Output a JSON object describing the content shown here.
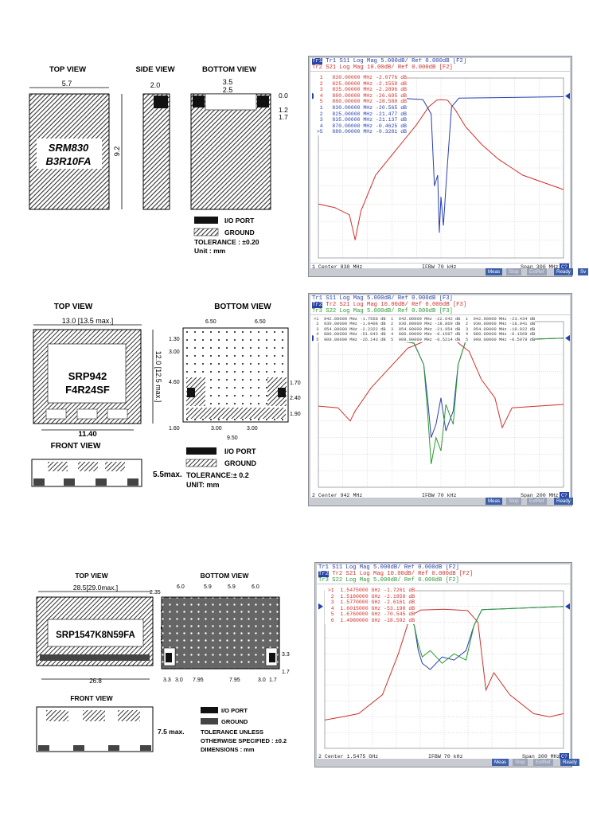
{
  "section1": {
    "drawing": {
      "top_view": "TOP VIEW",
      "side_view": "SIDE VIEW",
      "bottom_view": "BOTTOM VIEW",
      "dim_width": "5.7",
      "dim_height": "9.2",
      "dim_side": "2.0",
      "dim_b1": "3.5",
      "dim_b2": "2.5",
      "dim_r1": "0.0",
      "dim_r2": "1.2",
      "dim_r3": "1.7",
      "part_line1": "SRM830",
      "part_line2": "B3R10FA",
      "legend_io": "I/O PORT",
      "legend_ground": "GROUND",
      "tolerance": "TOLERANCE : ±0.20",
      "unit": "Unit : mm"
    },
    "analyzer": {
      "trace_lines": [
        "Tr1 S11 Log Mag 5.000dB/ Ref 0.000dB [F2]",
        "Tr2 S21 Log Mag 10.00dB/ Ref 0.000dB [F2]"
      ],
      "marker_lines": [
        "  1   830.00000 MHz -2.0776 dB",
        "  2   825.00000 MHz -2.1558 dB",
        "  3   835.00000 MHz -2.2896 dB",
        "  4   880.00000 MHz -26.695 dB",
        "  5   880.00000 MHz -28.588 dB",
        "  1   830.00000 MHz -20.565 dB",
        "  2   825.00000 MHz -21.477 dB",
        "  3   835.00000 MHz -21.137 dB",
        "  4   870.00000 MHz -0.4625 dB",
        " >5   880.00000 MHz -0.3281 dB"
      ],
      "status_left": "1  Center 830 MHz",
      "status_mid": "IFBW 70 kHz",
      "status_right": "Span 300 MHz",
      "status_badge": "C?",
      "softkeys": [
        "Meas",
        "Stop",
        "ExtRef",
        "Ready",
        "Sv"
      ]
    },
    "chart_data": {
      "type": "line",
      "xlabel": "Center 830 MHz",
      "x_center_mhz": 830,
      "x_span_mhz": 300,
      "series": [
        {
          "points_mhz_db": [
            [
              680,
              -60
            ],
            [
              700,
              -62
            ],
            [
              718,
              -66
            ],
            [
              725,
              -80
            ],
            [
              732,
              -64
            ],
            [
              750,
              -44
            ],
            [
              775,
              -30
            ],
            [
              800,
              -16
            ],
            [
              815,
              -6
            ],
            [
              825,
              -2.2
            ],
            [
              830,
              -2.1
            ],
            [
              838,
              -2.3
            ],
            [
              848,
              -8
            ],
            [
              860,
              -17
            ],
            [
              880,
              -27
            ],
            [
              900,
              -35
            ],
            [
              930,
              -44
            ],
            [
              980,
              -52
            ]
          ]
        },
        {
          "points_mhz_db": [
            [
              680,
              0
            ],
            [
              760,
              -0.3
            ],
            [
              808,
              -1
            ],
            [
              818,
              -5
            ],
            [
              822,
              -25
            ],
            [
              826,
              -22
            ],
            [
              828,
              -38
            ],
            [
              830,
              -28
            ],
            [
              833,
              -36
            ],
            [
              837,
              -22
            ],
            [
              843,
              -3
            ],
            [
              852,
              -0.6
            ],
            [
              980,
              -0.2
            ]
          ]
        }
      ]
    }
  },
  "section2": {
    "drawing": {
      "top_view": "TOP VIEW",
      "bottom_view": "BOTTOM VIEW",
      "front_view": "FRONT VIEW",
      "dim_width": "13.0 [13.5 max.]",
      "dim_height": "12.0 [12.5 max.]",
      "dim_base": "11.40",
      "part_line1": "SRP942",
      "part_line2": "F4R24SF",
      "dim_b_top1": "6.50",
      "dim_b_top2": "6.50",
      "dim_b_left1": "1.30",
      "dim_b_left2": "3.00",
      "dim_b_left3": "4.60",
      "dim_b_right1": "1.70",
      "dim_b_right2": "2.40",
      "dim_b_right3": "1.90",
      "dim_b_bot0": "1.60",
      "dim_b_bot1": "3.00",
      "dim_b_bot2": "3.00",
      "dim_b_bot3": "9.50",
      "dim_front": "5.5max.",
      "legend_io": "I/O  PORT",
      "legend_ground": "GROUND",
      "tolerance": "TOLERANCE:± 0.2",
      "unit": "UNIT: mm"
    },
    "analyzer": {
      "trace_lines": [
        "Tr1 S11 Log Mag 5.000dB/ Ref 0.000dB [F3]",
        "Tr2 S21 Log Mag 10.00dB/ Ref 0.000dB [F3]",
        "Tr3 S22 Log Mag 5.000dB/ Ref 0.000dB [F3]"
      ],
      "marker_lines": [
        ">1  942.00000 MHz -1.7568 dB  1  942.00000 MHz -22.642 dB  1  942.00000 MHz -23.434 dB",
        " 2  930.00000 MHz -1.9408 dB  2  930.00000 MHz -18.869 dB  2  930.00000 MHz -18.041 dB",
        " 3  954.00000 MHz -2.2322 dB  3  954.00000 MHz -21.954 dB  3  954.00000 MHz -19.922 dB",
        " 4  880.00000 MHz -51.043 dB  4  880.00000 MHz -0.1597 dB  4  880.00000 MHz -0.1569 dB",
        " 5  909.00000 MHz -26.143 dB  5  909.00000 MHz -0.5214 dB  5  909.00000 MHz -0.5079 dB"
      ],
      "status_left": "2  Center 942 MHz",
      "status_mid": "IFBW 70 kHz",
      "status_right": "Span 200 MHz",
      "status_badge": "C?",
      "softkeys": [
        "Meas",
        "Stop",
        "ExtRef",
        "Ready"
      ]
    },
    "chart_data": {
      "type": "line",
      "xlabel": "Center 942 MHz",
      "x_center_mhz": 942,
      "x_span_mhz": 200,
      "series": [
        {
          "points_mhz_db": [
            [
              842,
              -41
            ],
            [
              858,
              -42
            ],
            [
              868,
              -50
            ],
            [
              872,
              -44
            ],
            [
              885,
              -30
            ],
            [
              900,
              -18
            ],
            [
              915,
              -6
            ],
            [
              928,
              -2
            ],
            [
              942,
              -1.8
            ],
            [
              955,
              -2.2
            ],
            [
              965,
              -8
            ],
            [
              975,
              -25
            ],
            [
              986,
              -36
            ],
            [
              992,
              -54
            ],
            [
              1000,
              -42
            ],
            [
              1042,
              -40
            ]
          ]
        },
        {
          "points_mhz_db": [
            [
              842,
              0
            ],
            [
              900,
              -0.4
            ],
            [
              920,
              -1.5
            ],
            [
              928,
              -8
            ],
            [
              931,
              -18
            ],
            [
              934,
              -30
            ],
            [
              938,
              -26
            ],
            [
              942,
              -18
            ],
            [
              946,
              -28
            ],
            [
              952,
              -22
            ],
            [
              956,
              -8
            ],
            [
              962,
              -1
            ],
            [
              1042,
              0
            ]
          ]
        },
        {
          "points_mhz_db": [
            [
              842,
              0
            ],
            [
              900,
              -0.4
            ],
            [
              920,
              -1.5
            ],
            [
              928,
              -8
            ],
            [
              931,
              -22
            ],
            [
              934,
              -38
            ],
            [
              938,
              -30
            ],
            [
              942,
              -34
            ],
            [
              946,
              -20
            ],
            [
              952,
              -26
            ],
            [
              956,
              -8
            ],
            [
              962,
              -1
            ],
            [
              1042,
              0
            ]
          ]
        }
      ]
    }
  },
  "section3": {
    "drawing": {
      "top_view": "TOP VIEW",
      "bottom_view": "BOTTOM  VIEW",
      "front_view": "FRONT VIEW",
      "dim_width": "28.5[29.0max.]",
      "dim_height": "11.0[11.5max.]",
      "dim_base": "26.8",
      "part": "SRP1547K8N59FA",
      "dim_b_top0": "2.35",
      "dim_b_top1": "6.0",
      "dim_b_top2": "5.9",
      "dim_b_top3": "5.9",
      "dim_b_top4": "6.0",
      "dim_b_r1": "3.3",
      "dim_b_r2": "1.7",
      "dim_b_bot": [
        "3.3",
        "3.0",
        "7.95",
        "7.95",
        "3.0",
        "1.7"
      ],
      "dim_front": "7.5 max.",
      "legend_io": "I/O PORT",
      "legend_ground": "GROUND",
      "tol1": "TOLERANCE UNLESS",
      "tol2": "OTHERWISE SPECIFIED : ±0.2",
      "tol3": "DIMENSIONS : mm"
    },
    "analyzer": {
      "trace_lines": [
        "Tr1 S11 Log Mag 5.000dB/ Ref 0.000dB [F2]",
        "Tr2 S21 Log Mag 10.00dB/ Ref 0.000dB [F2]",
        "Tr3 S22 Log Mag 5.000dB/ Ref 0.000dB [F2]"
      ],
      "marker_lines": [
        " >1  1.5475000 GHz -1.7261 dB",
        "  2  1.5180000 GHz -2.1958 dB",
        "  3  1.5770000 GHz -2.6161 dB",
        "  4  1.6015000 GHz -53.198 dB",
        "  5  1.6760000 GHz -70.545 dB",
        "  6  1.4980000 GHz -18.592 dB"
      ],
      "status_left": "2  Center 1.5475 GHz",
      "status_mid": "IFBW 70 kHz",
      "status_right": "Span 300 MHz",
      "status_badge": "C?",
      "softkeys": [
        "Meas",
        "Stop",
        "ExtRef",
        "Ready"
      ]
    },
    "chart_data": {
      "type": "line",
      "xlabel": "Center 1.5475 GHz",
      "x_center_ghz": 1.5475,
      "x_span_mhz": 300,
      "series": [
        {
          "points_ghz_db": [
            [
              1.3975,
              -72
            ],
            [
              1.42,
              -70
            ],
            [
              1.44,
              -68
            ],
            [
              1.47,
              -56
            ],
            [
              1.49,
              -30
            ],
            [
              1.505,
              -6
            ],
            [
              1.518,
              -2.2
            ],
            [
              1.547,
              -1.7
            ],
            [
              1.577,
              -2.6
            ],
            [
              1.59,
              -10
            ],
            [
              1.6,
              -53
            ],
            [
              1.61,
              -42
            ],
            [
              1.63,
              -56
            ],
            [
              1.66,
              -68
            ],
            [
              1.68,
              -70
            ],
            [
              1.6975,
              -68
            ]
          ]
        },
        {
          "points_ghz_db": [
            [
              1.3975,
              0
            ],
            [
              1.48,
              -0.5
            ],
            [
              1.5,
              -2
            ],
            [
              1.51,
              -6
            ],
            [
              1.515,
              -14
            ],
            [
              1.52,
              -18
            ],
            [
              1.53,
              -20
            ],
            [
              1.545,
              -16
            ],
            [
              1.56,
              -17
            ],
            [
              1.575,
              -14
            ],
            [
              1.585,
              -6
            ],
            [
              1.595,
              -1
            ],
            [
              1.6975,
              0
            ]
          ]
        },
        {
          "points_ghz_db": [
            [
              1.3975,
              0
            ],
            [
              1.48,
              -0.5
            ],
            [
              1.5,
              -2
            ],
            [
              1.51,
              -6
            ],
            [
              1.515,
              -12
            ],
            [
              1.52,
              -16
            ],
            [
              1.53,
              -14
            ],
            [
              1.545,
              -18
            ],
            [
              1.56,
              -15
            ],
            [
              1.575,
              -17
            ],
            [
              1.585,
              -6
            ],
            [
              1.595,
              -1
            ],
            [
              1.6975,
              0
            ]
          ]
        }
      ]
    }
  },
  "colors": {
    "s11": "#2840b0",
    "s21": "#d0302a",
    "s22": "#2a9a32",
    "hatch": "#333333",
    "io": "#111111"
  }
}
